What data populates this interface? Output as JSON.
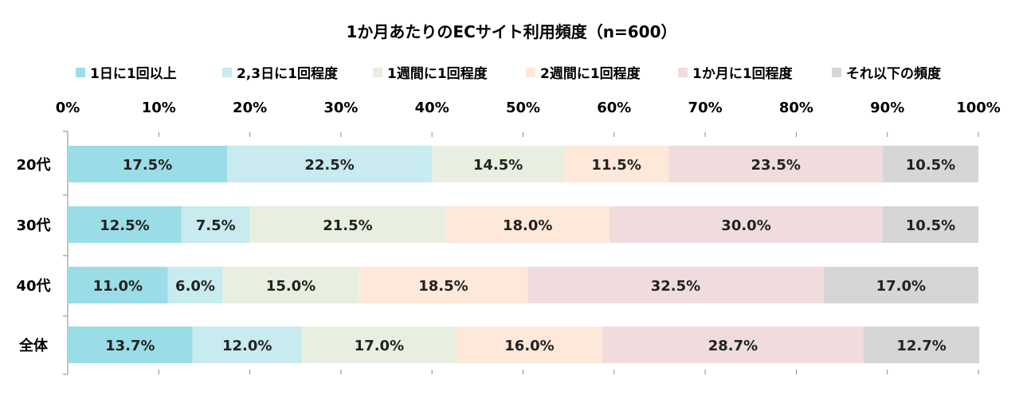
{
  "chart_data": {
    "type": "bar",
    "orientation": "horizontal",
    "stacked": true,
    "title": "1か月あたりのECサイト利用頻度（n=600）",
    "xlim": [
      0,
      100
    ],
    "x_ticks": [
      "0%",
      "10%",
      "20%",
      "30%",
      "40%",
      "50%",
      "60%",
      "70%",
      "80%",
      "90%",
      "100%"
    ],
    "legend_position": "top",
    "categories": [
      "20代",
      "30代",
      "40代",
      "全体"
    ],
    "series": [
      {
        "name": "1日に1回以上",
        "color": "#9bdde6",
        "values": [
          17.5,
          12.5,
          11.0,
          13.7
        ],
        "labels": [
          "17.5%",
          "12.5%",
          "11.0%",
          "13.7%"
        ]
      },
      {
        "name": "2,3日に1回程度",
        "color": "#c7ebef",
        "values": [
          22.5,
          7.5,
          6.0,
          12.0
        ],
        "labels": [
          "22.5%",
          "7.5%",
          "6.0%",
          "12.0%"
        ]
      },
      {
        "name": "1週間に1回程度",
        "color": "#e9efe0",
        "values": [
          14.5,
          21.5,
          15.0,
          17.0
        ],
        "labels": [
          "14.5%",
          "21.5%",
          "15.0%",
          "17.0%"
        ]
      },
      {
        "name": "2週間に1回程度",
        "color": "#fde8da",
        "values": [
          11.5,
          18.0,
          18.5,
          16.0
        ],
        "labels": [
          "11.5%",
          "18.0%",
          "18.5%",
          "16.0%"
        ]
      },
      {
        "name": "1か月に1回程度",
        "color": "#f0dcdc",
        "values": [
          23.5,
          30.0,
          32.5,
          28.7
        ],
        "labels": [
          "23.5%",
          "30.0%",
          "32.5%",
          "28.7%"
        ]
      },
      {
        "name": "それ以下の頻度",
        "color": "#d6d6d6",
        "values": [
          10.5,
          10.5,
          17.0,
          12.7
        ],
        "labels": [
          "10.5%",
          "10.5%",
          "17.0%",
          "12.7%"
        ]
      }
    ]
  }
}
